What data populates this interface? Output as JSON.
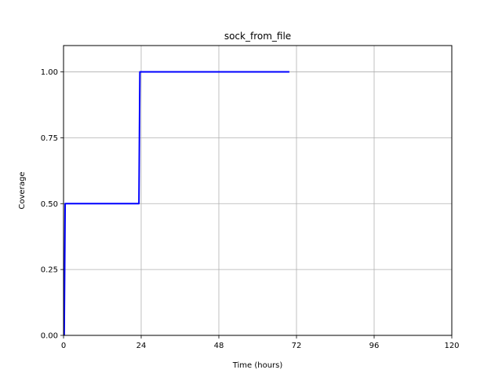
{
  "chart_data": {
    "type": "line",
    "title": "sock_from_file",
    "xlabel": "Time (hours)",
    "ylabel": "Coverage",
    "xlim": [
      0,
      120
    ],
    "ylim": [
      0,
      1.1
    ],
    "xticks": [
      0,
      24,
      48,
      72,
      96,
      120
    ],
    "xtick_labels": [
      "0",
      "24",
      "48",
      "72",
      "96",
      "120"
    ],
    "yticks": [
      0,
      0.25,
      0.5,
      0.75,
      1.0
    ],
    "ytick_labels": [
      "0.00",
      "0.25",
      "0.50",
      "0.75",
      "1.00"
    ],
    "grid": true,
    "series": [
      {
        "color": "#0000ff",
        "x": [
          0.2,
          0.2,
          0.5,
          23.3,
          23.6,
          69.8
        ],
        "y": [
          0.0,
          0.0,
          0.5,
          0.5,
          1.0,
          1.0
        ]
      }
    ]
  }
}
